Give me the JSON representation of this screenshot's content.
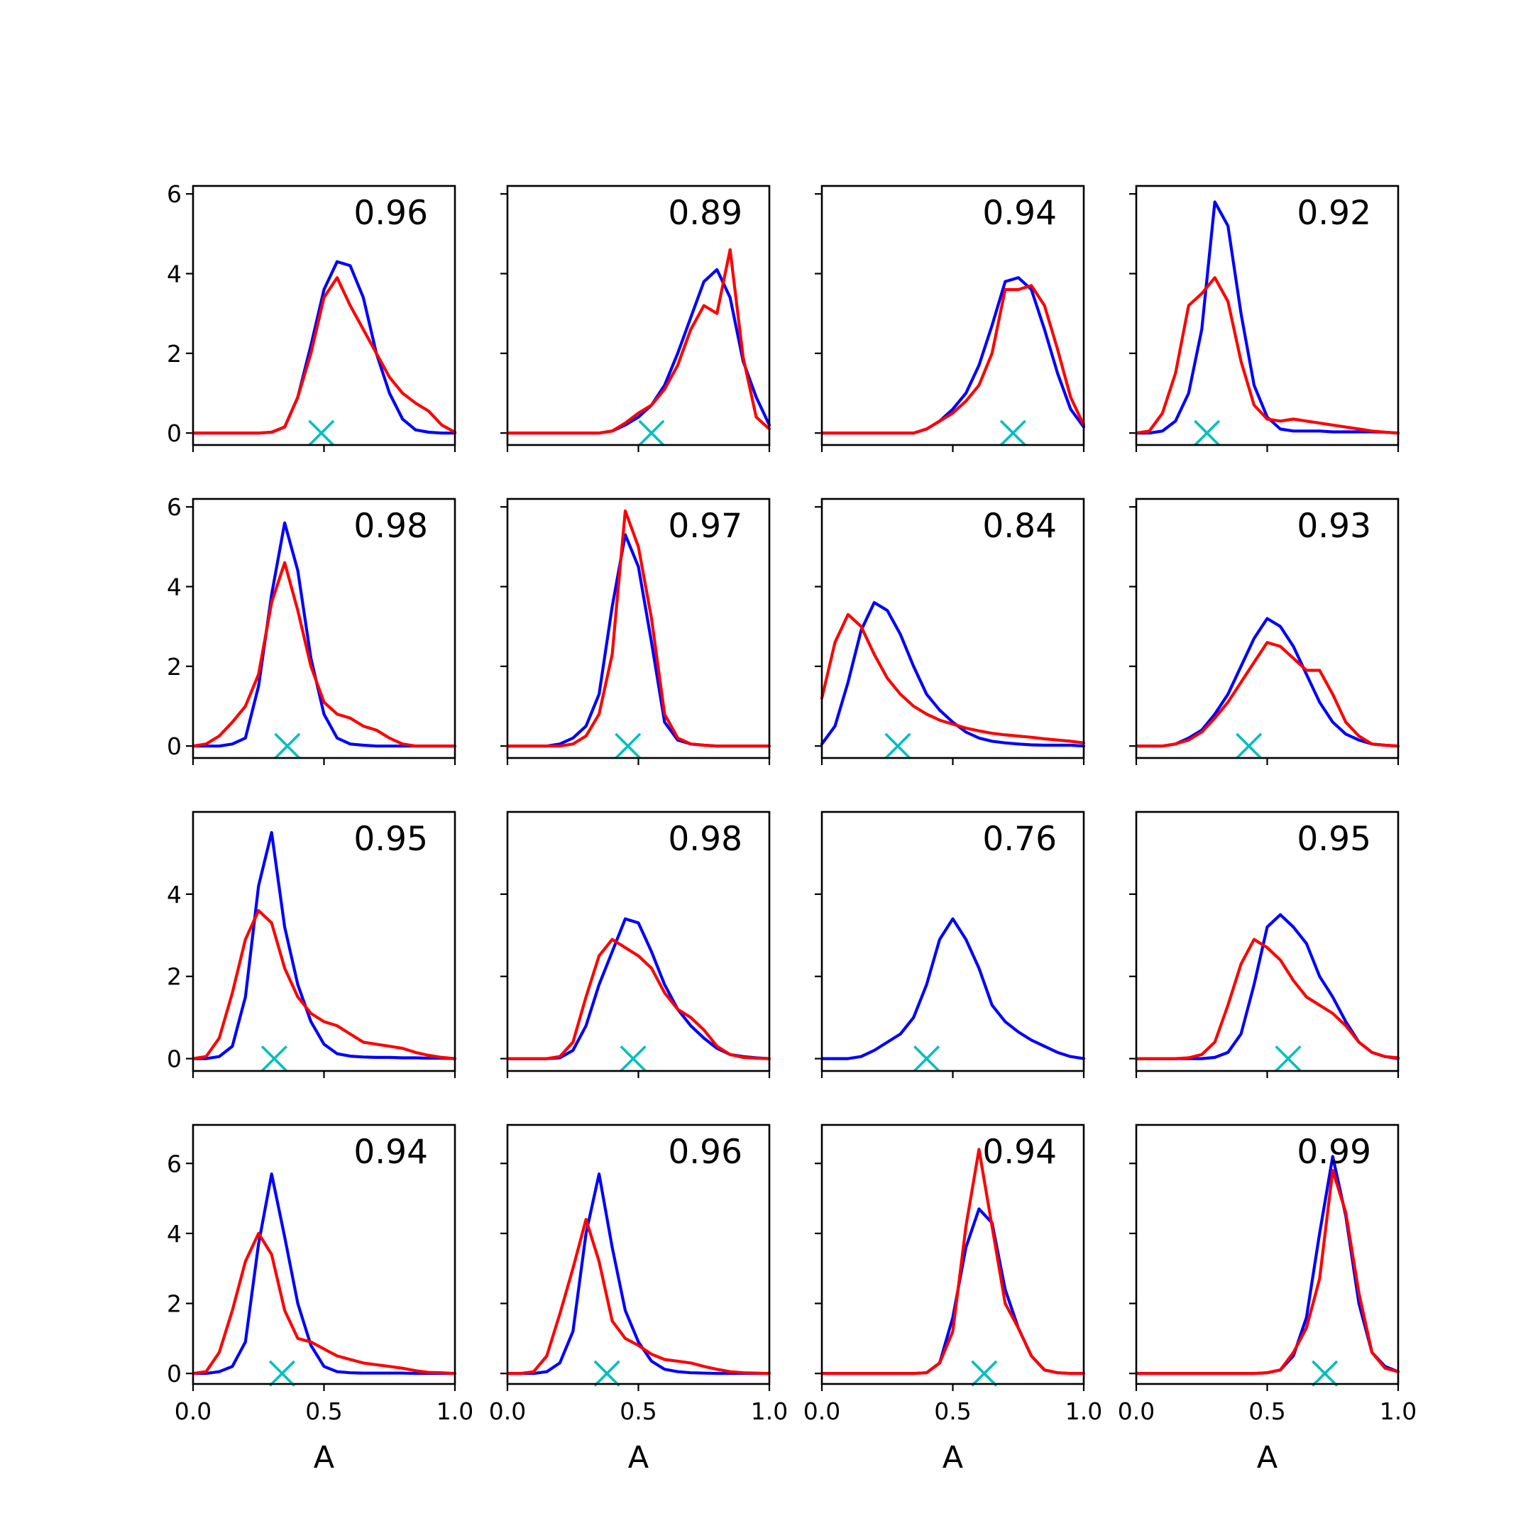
{
  "chart_data": {
    "type": "line",
    "layout": {
      "rows": 4,
      "cols": 4,
      "sharex": true,
      "sharey": "row"
    },
    "xlim": [
      0,
      1
    ],
    "x_ticks": [
      "0.0",
      "0.5",
      "1.0"
    ],
    "xlabel": "A",
    "row_ylims": [
      [
        -0.3,
        6.2
      ],
      [
        -0.3,
        6.2
      ],
      [
        -0.3,
        6.0
      ],
      [
        -0.3,
        7.1
      ]
    ],
    "row_yticks": [
      [
        "0",
        "2",
        "4",
        "6"
      ],
      [
        "0",
        "2",
        "4",
        "6"
      ],
      [
        "0",
        "2",
        "4"
      ],
      [
        "0",
        "2",
        "4",
        "6"
      ]
    ],
    "colors": {
      "series_a": "#0000ff",
      "series_b": "#ff0000",
      "marker": "#00bfbf"
    },
    "x": [
      0,
      0.05,
      0.1,
      0.15,
      0.2,
      0.25,
      0.3,
      0.35,
      0.4,
      0.45,
      0.5,
      0.55,
      0.6,
      0.65,
      0.7,
      0.75,
      0.8,
      0.85,
      0.9,
      0.95,
      1.0
    ],
    "panels": [
      {
        "score": "0.96",
        "marker_x": 0.49,
        "blue": [
          0,
          0,
          0,
          0,
          0,
          0,
          0.02,
          0.15,
          0.9,
          2.2,
          3.6,
          4.3,
          4.2,
          3.4,
          2.0,
          1.0,
          0.35,
          0.08,
          0.02,
          0,
          0
        ],
        "red": [
          0,
          0,
          0,
          0,
          0,
          0,
          0.02,
          0.15,
          0.9,
          2.0,
          3.4,
          3.9,
          3.2,
          2.6,
          2.0,
          1.4,
          1.0,
          0.75,
          0.55,
          0.2,
          0.02
        ]
      },
      {
        "score": "0.89",
        "marker_x": 0.55,
        "blue": [
          0,
          0,
          0,
          0,
          0,
          0,
          0,
          0,
          0.05,
          0.2,
          0.4,
          0.7,
          1.2,
          2.0,
          2.9,
          3.8,
          4.1,
          3.4,
          1.8,
          0.9,
          0.2
        ],
        "red": [
          0,
          0,
          0,
          0,
          0,
          0,
          0,
          0,
          0.05,
          0.25,
          0.5,
          0.7,
          1.1,
          1.7,
          2.6,
          3.2,
          3.0,
          4.6,
          1.9,
          0.4,
          0.1
        ]
      },
      {
        "score": "0.94",
        "marker_x": 0.73,
        "blue": [
          0,
          0,
          0,
          0,
          0,
          0,
          0,
          0,
          0.1,
          0.3,
          0.6,
          1.0,
          1.7,
          2.7,
          3.8,
          3.9,
          3.6,
          2.6,
          1.5,
          0.6,
          0.15
        ],
        "red": [
          0,
          0,
          0,
          0,
          0,
          0,
          0,
          0,
          0.1,
          0.3,
          0.5,
          0.8,
          1.2,
          2.0,
          3.6,
          3.6,
          3.7,
          3.2,
          2.1,
          0.9,
          0.2
        ]
      },
      {
        "score": "0.92",
        "marker_x": 0.27,
        "blue": [
          0,
          0,
          0.05,
          0.3,
          1.0,
          2.6,
          5.8,
          5.2,
          3.0,
          1.2,
          0.4,
          0.1,
          0.05,
          0.05,
          0.05,
          0.03,
          0.03,
          0.03,
          0.03,
          0.02,
          0
        ],
        "red": [
          0,
          0.05,
          0.5,
          1.5,
          3.2,
          3.5,
          3.9,
          3.3,
          1.8,
          0.7,
          0.35,
          0.3,
          0.35,
          0.3,
          0.25,
          0.2,
          0.15,
          0.1,
          0.05,
          0.02,
          0
        ]
      },
      {
        "score": "0.98",
        "marker_x": 0.36,
        "blue": [
          0,
          0,
          0,
          0.05,
          0.2,
          1.5,
          3.8,
          5.6,
          4.4,
          2.2,
          0.8,
          0.2,
          0.05,
          0.02,
          0,
          0,
          0,
          0,
          0,
          0,
          0
        ],
        "red": [
          0,
          0.05,
          0.25,
          0.6,
          1.0,
          1.8,
          3.6,
          4.6,
          3.4,
          2.0,
          1.1,
          0.8,
          0.7,
          0.5,
          0.4,
          0.2,
          0.05,
          0,
          0,
          0,
          0
        ]
      },
      {
        "score": "0.97",
        "marker_x": 0.46,
        "blue": [
          0,
          0,
          0,
          0,
          0.05,
          0.2,
          0.5,
          1.3,
          3.5,
          5.3,
          4.5,
          2.6,
          0.6,
          0.15,
          0.05,
          0.02,
          0,
          0,
          0,
          0,
          0
        ],
        "red": [
          0,
          0,
          0,
          0,
          0,
          0.05,
          0.25,
          0.8,
          2.3,
          5.9,
          5.0,
          3.2,
          0.8,
          0.2,
          0.05,
          0.02,
          0,
          0,
          0,
          0,
          0
        ]
      },
      {
        "score": "0.84",
        "marker_x": 0.29,
        "blue": [
          0.05,
          0.5,
          1.6,
          2.9,
          3.6,
          3.4,
          2.8,
          2.0,
          1.3,
          0.9,
          0.6,
          0.35,
          0.2,
          0.12,
          0.08,
          0.05,
          0.03,
          0.02,
          0.02,
          0.02,
          0
        ],
        "red": [
          1.2,
          2.6,
          3.3,
          3.0,
          2.3,
          1.7,
          1.3,
          1.0,
          0.8,
          0.65,
          0.55,
          0.45,
          0.38,
          0.32,
          0.28,
          0.25,
          0.22,
          0.18,
          0.15,
          0.12,
          0.08
        ]
      },
      {
        "score": "0.93",
        "marker_x": 0.43,
        "blue": [
          0,
          0,
          0,
          0.05,
          0.2,
          0.4,
          0.8,
          1.3,
          2.0,
          2.7,
          3.2,
          3.0,
          2.5,
          1.8,
          1.1,
          0.6,
          0.3,
          0.15,
          0.05,
          0.02,
          0
        ],
        "red": [
          0,
          0,
          0,
          0.05,
          0.15,
          0.35,
          0.7,
          1.1,
          1.6,
          2.1,
          2.6,
          2.5,
          2.2,
          1.9,
          1.9,
          1.3,
          0.6,
          0.25,
          0.05,
          0.02,
          0
        ]
      },
      {
        "score": "0.95",
        "marker_x": 0.31,
        "blue": [
          0,
          0,
          0.05,
          0.3,
          1.5,
          4.2,
          5.5,
          3.2,
          1.8,
          0.9,
          0.35,
          0.12,
          0.06,
          0.04,
          0.03,
          0.03,
          0.02,
          0.02,
          0.01,
          0.01,
          0
        ],
        "red": [
          0,
          0.05,
          0.5,
          1.6,
          2.9,
          3.6,
          3.3,
          2.2,
          1.5,
          1.1,
          0.9,
          0.8,
          0.6,
          0.4,
          0.35,
          0.3,
          0.25,
          0.15,
          0.08,
          0.03,
          0
        ]
      },
      {
        "score": "0.98",
        "marker_x": 0.48,
        "blue": [
          0,
          0,
          0,
          0,
          0.02,
          0.2,
          0.8,
          1.8,
          2.6,
          3.4,
          3.3,
          2.6,
          1.8,
          1.2,
          0.8,
          0.5,
          0.25,
          0.1,
          0.05,
          0.02,
          0
        ],
        "red": [
          0,
          0,
          0,
          0,
          0.05,
          0.4,
          1.5,
          2.5,
          2.9,
          2.7,
          2.5,
          2.2,
          1.6,
          1.2,
          1.0,
          0.7,
          0.3,
          0.1,
          0.03,
          0.01,
          0
        ]
      },
      {
        "score": "0.76",
        "marker_x": 0.4,
        "blue": [
          0,
          0,
          0,
          0.05,
          0.2,
          0.4,
          0.6,
          1.0,
          1.8,
          2.9,
          3.4,
          2.9,
          2.2,
          1.3,
          0.9,
          0.65,
          0.45,
          0.3,
          0.15,
          0.05,
          0
        ]
      },
      {
        "score": "0.95",
        "marker_x": 0.58,
        "blue": [
          0,
          0,
          0,
          0,
          0,
          0,
          0.03,
          0.15,
          0.6,
          1.8,
          3.2,
          3.5,
          3.2,
          2.8,
          2.0,
          1.5,
          0.9,
          0.4,
          0.15,
          0.05,
          0
        ],
        "red": [
          0,
          0,
          0,
          0,
          0.02,
          0.1,
          0.4,
          1.3,
          2.3,
          2.9,
          2.7,
          2.4,
          1.9,
          1.5,
          1.3,
          1.1,
          0.8,
          0.4,
          0.15,
          0.05,
          0.02
        ]
      },
      {
        "score": "0.94",
        "marker_x": 0.34,
        "blue": [
          0,
          0,
          0.05,
          0.2,
          0.9,
          3.7,
          5.7,
          3.9,
          2.0,
          0.8,
          0.2,
          0.05,
          0.02,
          0.01,
          0.01,
          0.01,
          0.01,
          0,
          0,
          0,
          0
        ],
        "red": [
          0,
          0.05,
          0.6,
          1.8,
          3.2,
          4.0,
          3.4,
          1.8,
          1.0,
          0.9,
          0.7,
          0.5,
          0.4,
          0.3,
          0.25,
          0.2,
          0.15,
          0.08,
          0.03,
          0.02,
          0
        ]
      },
      {
        "score": "0.96",
        "marker_x": 0.38,
        "blue": [
          0,
          0,
          0,
          0.05,
          0.3,
          1.2,
          4.0,
          5.7,
          3.6,
          1.8,
          0.9,
          0.35,
          0.12,
          0.05,
          0.02,
          0.01,
          0,
          0,
          0,
          0,
          0
        ],
        "red": [
          0,
          0,
          0.05,
          0.5,
          1.7,
          3.0,
          4.4,
          3.2,
          1.5,
          1.0,
          0.8,
          0.55,
          0.4,
          0.35,
          0.3,
          0.2,
          0.12,
          0.05,
          0.02,
          0.01,
          0
        ]
      },
      {
        "score": "0.94",
        "marker_x": 0.62,
        "blue": [
          0,
          0,
          0,
          0,
          0,
          0,
          0,
          0,
          0.02,
          0.3,
          1.6,
          3.6,
          4.7,
          4.3,
          2.4,
          1.3,
          0.5,
          0.1,
          0.02,
          0,
          0
        ],
        "red": [
          0,
          0,
          0,
          0,
          0,
          0,
          0,
          0,
          0.02,
          0.3,
          1.2,
          4.2,
          6.4,
          4.2,
          2.0,
          1.3,
          0.5,
          0.1,
          0.02,
          0,
          0
        ]
      },
      {
        "score": "0.99",
        "marker_x": 0.72,
        "blue": [
          0,
          0,
          0,
          0,
          0,
          0,
          0,
          0,
          0,
          0,
          0.02,
          0.1,
          0.5,
          1.6,
          4.0,
          6.2,
          4.5,
          2.0,
          0.6,
          0.2,
          0.05
        ],
        "red": [
          0,
          0,
          0,
          0,
          0,
          0,
          0,
          0,
          0,
          0,
          0.02,
          0.1,
          0.6,
          1.3,
          2.7,
          5.8,
          4.6,
          2.3,
          0.6,
          0.15,
          0.05
        ]
      }
    ]
  }
}
